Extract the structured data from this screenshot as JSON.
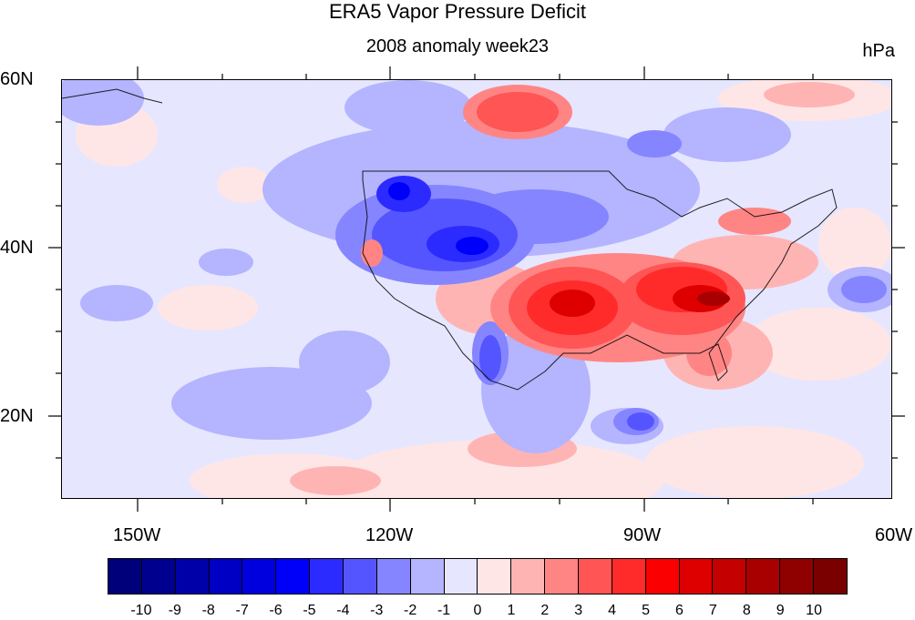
{
  "header": {
    "title": "ERA5 Vapor Pressure Deficit",
    "subtitle": "2008 anomaly week23",
    "units": "hPa"
  },
  "axes": {
    "lat_labels": [
      "60N",
      "40N",
      "20N"
    ],
    "lon_labels": [
      "150W",
      "120W",
      "90W",
      "60W"
    ]
  },
  "colorbar": {
    "labels": [
      "-10",
      "-9",
      "-8",
      "-7",
      "-6",
      "-5",
      "-4",
      "-3",
      "-2",
      "-1",
      "0",
      "1",
      "2",
      "3",
      "4",
      "5",
      "6",
      "7",
      "8",
      "9",
      "10"
    ],
    "colors": [
      "#00007a",
      "#00008f",
      "#0000a8",
      "#0000c4",
      "#0000de",
      "#0000fa",
      "#2b2bff",
      "#5555ff",
      "#8585ff",
      "#b4b4ff",
      "#e6e6ff",
      "#ffe6e6",
      "#ffb4b4",
      "#ff8585",
      "#ff5555",
      "#ff2b2b",
      "#fa0000",
      "#de0000",
      "#c40000",
      "#a80000",
      "#8f0000",
      "#7a0000"
    ]
  }
}
